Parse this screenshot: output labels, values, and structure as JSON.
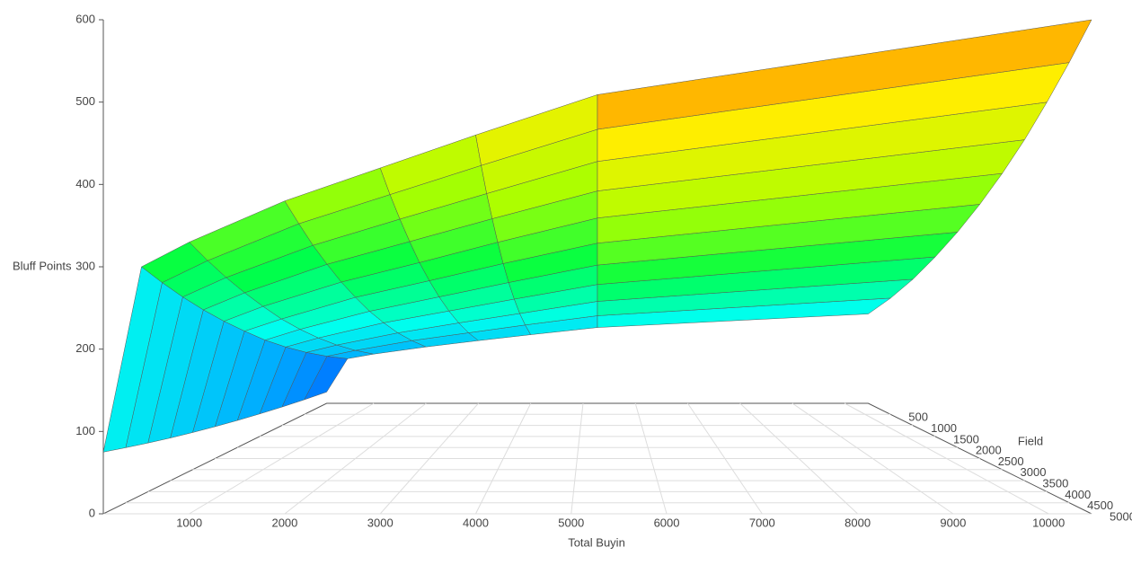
{
  "chart_data": {
    "type": "surface",
    "xlabel": "Total Buyin",
    "ylabel": "Bluff Points",
    "zlabel": "Field",
    "x": [
      100,
      500,
      1000,
      2000,
      3000,
      4000,
      5275,
      10450
    ],
    "z": [
      0,
      500,
      1000,
      1500,
      2000,
      2500,
      3000,
      3500,
      4000,
      4500,
      5000
    ],
    "values": [
      [
        25,
        99,
        109,
        125,
        139,
        152,
        168,
        198
      ],
      [
        30,
        119,
        131,
        151,
        167,
        183,
        202,
        238
      ],
      [
        35,
        139,
        153,
        176,
        195,
        213,
        236,
        278
      ],
      [
        40,
        159,
        175,
        202,
        223,
        244,
        270,
        319
      ],
      [
        45,
        179,
        197,
        227,
        251,
        275,
        304,
        359
      ],
      [
        50,
        200,
        219,
        253,
        279,
        306,
        338,
        399
      ],
      [
        55,
        220,
        242,
        278,
        307,
        337,
        373,
        439
      ],
      [
        60,
        240,
        264,
        304,
        336,
        368,
        407,
        479
      ],
      [
        65,
        260,
        286,
        329,
        364,
        398,
        441,
        520
      ],
      [
        70,
        280,
        308,
        355,
        392,
        429,
        475,
        560
      ],
      [
        75,
        300,
        330,
        380,
        420,
        460,
        509,
        600
      ]
    ],
    "xlim": [
      100,
      10450
    ],
    "zlim": [
      0,
      5000
    ],
    "ylim": [
      0,
      600
    ],
    "xticks": [
      1000,
      2000,
      3000,
      4000,
      5000,
      6000,
      7000,
      8000,
      9000,
      10000
    ],
    "zticks": [
      500,
      1000,
      1500,
      2000,
      2500,
      3000,
      3500,
      4000,
      4500,
      5000
    ],
    "yticks": [
      0,
      100,
      200,
      300,
      400,
      500,
      600
    ],
    "colormap": [
      "#0022ff",
      "#00aaff",
      "#00ffee",
      "#00ff44",
      "#aaff00",
      "#ffee00",
      "#ff5500"
    ],
    "grid": true
  }
}
